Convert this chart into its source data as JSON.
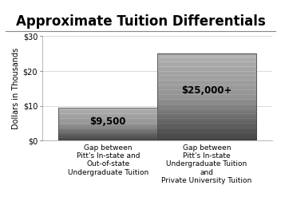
{
  "title": "Approximate Tuition Differentials",
  "categories": [
    "Gap between\nPitt's In-state and\nOut-of-state\nUndergraduate Tuition",
    "Gap between\nPitt's In-state\nUndergraduate Tuition\nand\nPrivate University Tuition"
  ],
  "values": [
    9.5,
    25.0
  ],
  "bar_labels": [
    "$9,500",
    "$25,000+"
  ],
  "ylabel": "Dollars in Thousands",
  "yticks": [
    0,
    10,
    20,
    30
  ],
  "yticklabels": [
    "$0",
    "$10",
    "$20",
    "$30"
  ],
  "ylim": [
    0,
    30
  ],
  "background_color": "#ffffff",
  "title_fontsize": 12,
  "label_fontsize": 6.5,
  "bar_label_fontsize": 8.5,
  "ylabel_fontsize": 7,
  "ytick_fontsize": 7,
  "bar_width": 0.45,
  "x_positions": [
    0.3,
    0.75
  ]
}
